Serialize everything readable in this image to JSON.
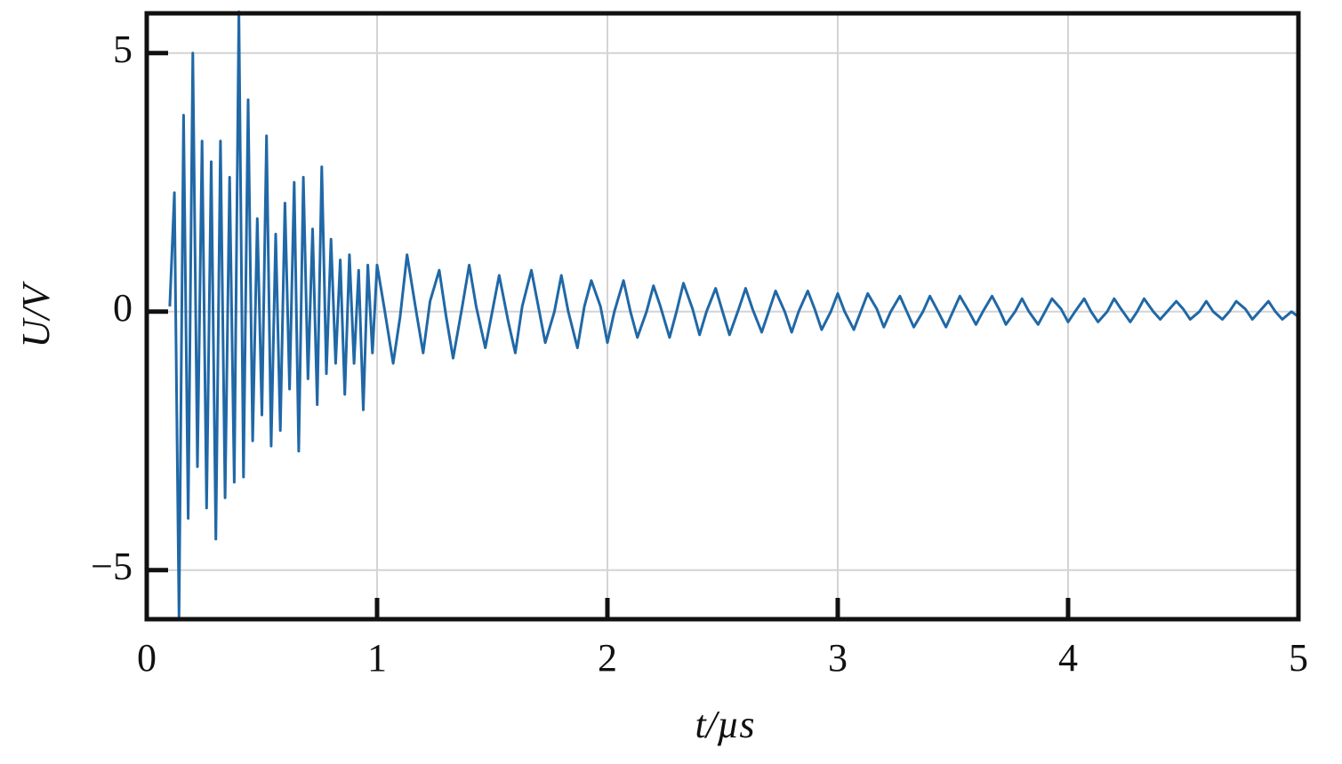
{
  "chart_data": {
    "type": "line",
    "x_label": "t/µs",
    "y_label": "U/V",
    "color": "#2068a6",
    "grid": true,
    "xlim": [
      0,
      5
    ],
    "ylim": [
      -5.95,
      5.77
    ],
    "xticks": [
      0,
      1,
      2,
      3,
      4,
      5
    ],
    "yticks": [
      {
        "value": -5,
        "label": "−5"
      },
      0,
      5
    ],
    "x": [
      0.1,
      0.12,
      0.14,
      0.16,
      0.18,
      0.2,
      0.22,
      0.24,
      0.26,
      0.28,
      0.3,
      0.32,
      0.34,
      0.36,
      0.38,
      0.4,
      0.42,
      0.44,
      0.46,
      0.48,
      0.5,
      0.52,
      0.54,
      0.56,
      0.58,
      0.6,
      0.62,
      0.64,
      0.66,
      0.68,
      0.7,
      0.72,
      0.74,
      0.76,
      0.78,
      0.8,
      0.82,
      0.84,
      0.86,
      0.88,
      0.9,
      0.92,
      0.94,
      0.96,
      0.98,
      1,
      1.03,
      1.07,
      1.1,
      1.13,
      1.17,
      1.2,
      1.23,
      1.27,
      1.3,
      1.33,
      1.37,
      1.4,
      1.43,
      1.47,
      1.5,
      1.53,
      1.57,
      1.6,
      1.63,
      1.67,
      1.7,
      1.73,
      1.77,
      1.8,
      1.83,
      1.87,
      1.9,
      1.93,
      1.97,
      2,
      2.03,
      2.07,
      2.1,
      2.13,
      2.17,
      2.2,
      2.23,
      2.27,
      2.3,
      2.33,
      2.37,
      2.4,
      2.43,
      2.47,
      2.5,
      2.53,
      2.57,
      2.6,
      2.63,
      2.67,
      2.7,
      2.73,
      2.77,
      2.8,
      2.83,
      2.87,
      2.9,
      2.93,
      2.97,
      3,
      3.03,
      3.07,
      3.1,
      3.13,
      3.17,
      3.2,
      3.23,
      3.27,
      3.3,
      3.33,
      3.37,
      3.4,
      3.43,
      3.47,
      3.5,
      3.53,
      3.57,
      3.6,
      3.63,
      3.67,
      3.7,
      3.73,
      3.77,
      3.8,
      3.83,
      3.87,
      3.9,
      3.93,
      3.97,
      4,
      4.03,
      4.07,
      4.1,
      4.13,
      4.17,
      4.2,
      4.23,
      4.27,
      4.3,
      4.33,
      4.37,
      4.4,
      4.43,
      4.47,
      4.5,
      4.53,
      4.57,
      4.6,
      4.63,
      4.67,
      4.7,
      4.73,
      4.77,
      4.8,
      4.83,
      4.87,
      4.9,
      4.93,
      4.97,
      5
    ],
    "values": [
      0.1,
      2.3,
      -5.9,
      3.8,
      -4.0,
      5.0,
      -3.0,
      3.3,
      -3.8,
      2.9,
      -4.4,
      3.3,
      -3.6,
      2.6,
      -3.3,
      5.8,
      -3.2,
      4.1,
      -2.5,
      1.8,
      -2.0,
      3.4,
      -2.6,
      1.5,
      -2.3,
      2.1,
      -1.5,
      2.5,
      -2.7,
      2.6,
      -1.3,
      1.6,
      -1.8,
      2.8,
      -1.2,
      1.4,
      -1.0,
      1.0,
      -1.6,
      1.1,
      -1.0,
      0.8,
      -1.9,
      0.9,
      -0.8,
      0.9,
      0.1,
      -1.0,
      -0.1,
      1.1,
      0.0,
      -0.8,
      0.2,
      0.8,
      -0.1,
      -0.9,
      0.1,
      0.9,
      0.1,
      -0.7,
      0.0,
      0.7,
      -0.2,
      -0.8,
      0.1,
      0.8,
      0.1,
      -0.6,
      0.0,
      0.7,
      0.0,
      -0.7,
      0.1,
      0.6,
      0.1,
      -0.6,
      0.0,
      0.6,
      0.0,
      -0.5,
      0.0,
      0.5,
      0.1,
      -0.5,
      0.0,
      0.55,
      0.05,
      -0.45,
      0.0,
      0.45,
      0.0,
      -0.45,
      0.05,
      0.45,
      0.05,
      -0.4,
      0.0,
      0.4,
      0.0,
      -0.4,
      0.0,
      0.4,
      0.05,
      -0.35,
      0.0,
      0.35,
      0.0,
      -0.35,
      0.0,
      0.35,
      0.05,
      -0.3,
      0.0,
      0.3,
      0.0,
      -0.3,
      0.0,
      0.3,
      0.05,
      -0.3,
      0.0,
      0.3,
      0.0,
      -0.25,
      0.0,
      0.3,
      0.05,
      -0.25,
      0.0,
      0.25,
      0.0,
      -0.25,
      0.0,
      0.25,
      0.05,
      -0.2,
      0.0,
      0.25,
      0.0,
      -0.2,
      0.0,
      0.25,
      0.05,
      -0.2,
      0.0,
      0.25,
      0.0,
      -0.15,
      0.0,
      0.2,
      0.05,
      -0.15,
      0.0,
      0.2,
      0.0,
      -0.15,
      0.0,
      0.2,
      0.05,
      -0.15,
      0.0,
      0.2,
      0.0,
      -0.15,
      0.0,
      -0.1
    ]
  }
}
